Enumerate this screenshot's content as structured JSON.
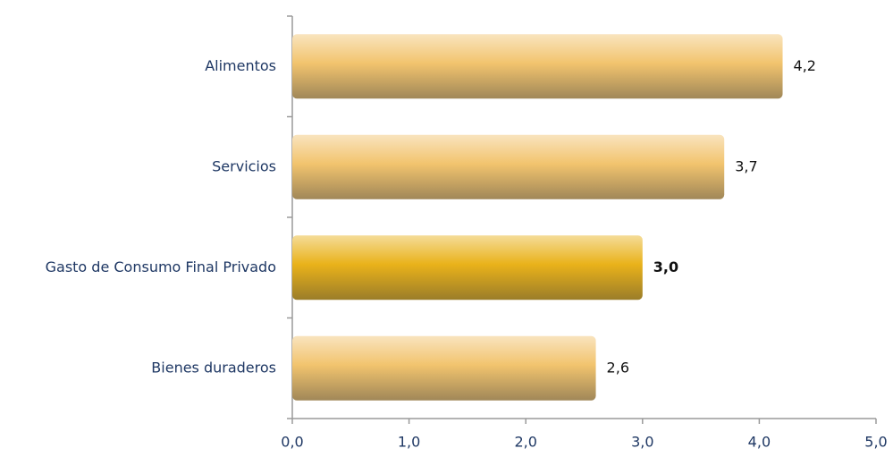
{
  "chart_data": {
    "type": "bar",
    "orientation": "horizontal",
    "categories": [
      "Alimentos",
      "Servicios",
      "Gasto de Consumo Final Privado",
      "Bienes duraderos"
    ],
    "values": [
      4.2,
      3.7,
      3.0,
      2.6
    ],
    "value_labels": [
      "4,2",
      "3,7",
      "3,0",
      "2,6"
    ],
    "colors": [
      "#f2c46e",
      "#f2c46e",
      "#e9b21a",
      "#f2c46e"
    ],
    "bold_labels": [
      false,
      false,
      true,
      false
    ],
    "xlim": [
      0,
      5
    ],
    "xticks": [
      {
        "value": 0,
        "label": "0,0"
      },
      {
        "value": 1,
        "label": "1,0"
      },
      {
        "value": 2,
        "label": "2,0"
      },
      {
        "value": 3,
        "label": "3,0"
      },
      {
        "value": 4,
        "label": "4,0"
      },
      {
        "value": 5,
        "label": "5,0"
      }
    ],
    "grid": false
  }
}
